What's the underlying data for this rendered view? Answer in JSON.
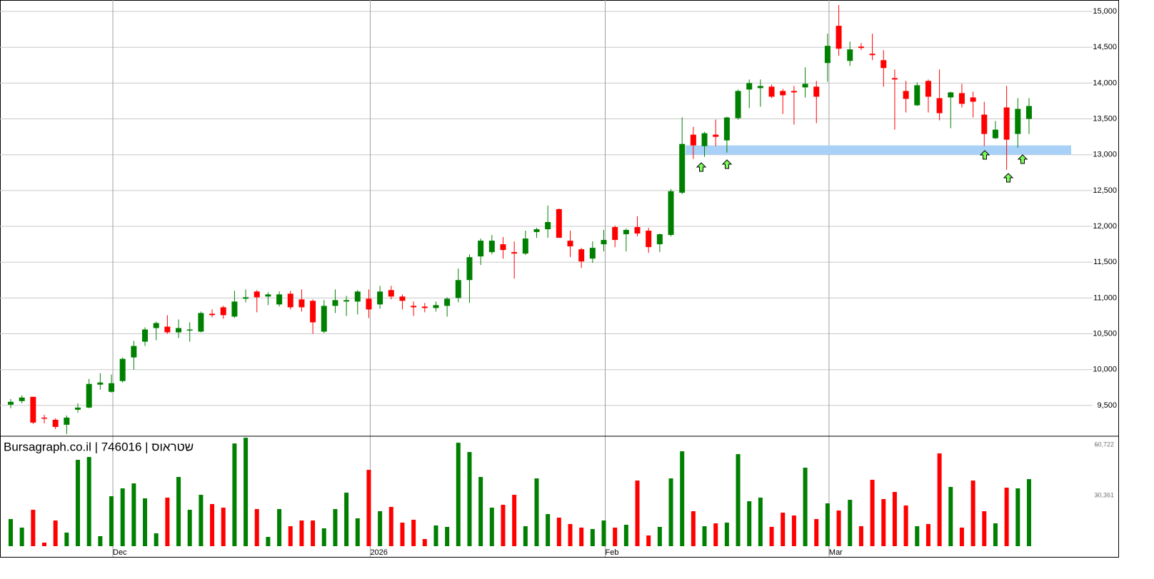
{
  "chart_data": {
    "type": "candlestick",
    "title": "Bursagraph.co.il | 746016 | שטראוס",
    "categories": [
      null,
      null,
      null,
      null,
      null,
      null,
      null,
      null,
      null,
      "Dec",
      null,
      null,
      null,
      null,
      null,
      null,
      null,
      null,
      null,
      null,
      null,
      null,
      null,
      null,
      null,
      null,
      null,
      null,
      null,
      null,
      null,
      null,
      "2026",
      null,
      null,
      null,
      null,
      null,
      null,
      null,
      null,
      null,
      null,
      null,
      null,
      null,
      null,
      null,
      null,
      null,
      null,
      null,
      null,
      "Feb",
      null,
      null,
      null,
      null,
      null,
      null,
      null,
      null,
      null,
      null,
      null,
      null,
      null,
      null,
      null,
      null,
      null,
      null,
      null,
      "Mar",
      null,
      null,
      null,
      null,
      null,
      null,
      null,
      null,
      null,
      null,
      null,
      null,
      null,
      null,
      null,
      null,
      null,
      null
    ],
    "open": [
      9510,
      9560,
      9620,
      9330,
      9300,
      9230,
      9440,
      9470,
      9790,
      9690,
      9840,
      10170,
      10390,
      10580,
      10600,
      10520,
      10550,
      10530,
      10780,
      10870,
      10740,
      10990,
      11090,
      11020,
      10910,
      11060,
      10980,
      10960,
      10530,
      10890,
      10950,
      10950,
      10990,
      10910,
      11110,
      11020,
      10890,
      10880,
      10860,
      10890,
      11000,
      11250,
      11580,
      11640,
      11750,
      11640,
      11620,
      11920,
      11960,
      12240,
      11800,
      11680,
      11550,
      11750,
      11990,
      11890,
      11990,
      11940,
      11750,
      11880,
      12470,
      13280,
      13120,
      13280,
      13200,
      13510,
      13910,
      13930,
      13950,
      13890,
      13890,
      13940,
      13950,
      14280,
      14800,
      14310,
      14510,
      14410,
      14320,
      14070,
      13890,
      13690,
      14030,
      13790,
      13800,
      13860,
      13800,
      13560,
      13230,
      13660,
      13290,
      13500
    ],
    "high": [
      9590,
      9640,
      9620,
      9370,
      9320,
      9360,
      9530,
      9870,
      9950,
      9930,
      10170,
      10400,
      10590,
      10670,
      10760,
      10700,
      10660,
      10810,
      10840,
      10890,
      11100,
      11120,
      11110,
      11080,
      11090,
      11100,
      11120,
      10980,
      10970,
      11120,
      11030,
      11110,
      11120,
      11170,
      11170,
      11050,
      10950,
      10930,
      10950,
      11010,
      11410,
      11610,
      11830,
      11880,
      11850,
      11790,
      11940,
      11980,
      12290,
      12250,
      11940,
      11700,
      11790,
      11950,
      12010,
      11970,
      12140,
      11980,
      11900,
      12520,
      13520,
      13390,
      13320,
      13490,
      13530,
      13910,
      14050,
      14050,
      13980,
      13920,
      13960,
      14220,
      14030,
      14690,
      15090,
      14580,
      14560,
      14690,
      14460,
      14190,
      14030,
      14010,
      14050,
      14190,
      13880,
      13990,
      13880,
      13740,
      13470,
      13960,
      13790,
      13790
    ],
    "low": [
      9460,
      9530,
      9240,
      9250,
      9170,
      9100,
      9400,
      9460,
      9720,
      9680,
      9820,
      10000,
      10330,
      10410,
      10500,
      10440,
      10390,
      10520,
      10730,
      10710,
      10720,
      10940,
      10800,
      10900,
      10880,
      10840,
      10810,
      10500,
      10510,
      10790,
      10750,
      10770,
      10720,
      10850,
      10980,
      10840,
      10750,
      10800,
      10810,
      10740,
      10940,
      10930,
      11460,
      11610,
      11550,
      11270,
      11600,
      11840,
      11840,
      11840,
      11570,
      11420,
      11490,
      11650,
      11710,
      11650,
      11860,
      11630,
      11640,
      11860,
      12450,
      12940,
      12970,
      13120,
      13030,
      13490,
      13650,
      13670,
      13790,
      13570,
      13420,
      13800,
      13440,
      14020,
      14380,
      14240,
      14460,
      14320,
      13950,
      13350,
      13590,
      13680,
      13590,
      13480,
      13370,
      13660,
      13520,
      13120,
      13220,
      12790,
      13100,
      13290
    ],
    "close": [
      9550,
      9610,
      9260,
      9320,
      9200,
      9330,
      9470,
      9800,
      9820,
      9810,
      10150,
      10330,
      10560,
      10650,
      10520,
      10580,
      10560,
      10790,
      10760,
      10760,
      10950,
      11010,
      11010,
      11050,
      11050,
      10870,
      10870,
      10660,
      10890,
      10970,
      10970,
      11090,
      10840,
      11090,
      11020,
      10960,
      10870,
      10860,
      10900,
      10990,
      11250,
      11570,
      11800,
      11800,
      11670,
      11620,
      11830,
      11960,
      12060,
      11840,
      11720,
      11510,
      11700,
      11810,
      11810,
      11950,
      11900,
      11710,
      11890,
      12490,
      13150,
      13130,
      13300,
      13250,
      13520,
      13890,
      14000,
      13960,
      13810,
      13830,
      13870,
      13990,
      13810,
      14520,
      14480,
      14470,
      14490,
      14390,
      14210,
      14050,
      13780,
      13970,
      13810,
      13580,
      13870,
      13710,
      13740,
      13290,
      13350,
      13210,
      13640,
      13680
    ],
    "up_color": "#008000",
    "down_color": "#ff0000",
    "ylim": [
      9080,
      15160
    ],
    "yticks": [
      {
        "value": 9500,
        "label": "9,500"
      },
      {
        "value": 10000,
        "label": "10,000"
      },
      {
        "value": 10500,
        "label": "10,500"
      },
      {
        "value": 11000,
        "label": "11,000"
      },
      {
        "value": 11500,
        "label": "11,500"
      },
      {
        "value": 12000,
        "label": "12,000"
      },
      {
        "value": 12500,
        "label": "12,500"
      },
      {
        "value": 13000,
        "label": "13,000"
      },
      {
        "value": 13500,
        "label": "13,500"
      },
      {
        "value": 14000,
        "label": "14,000"
      },
      {
        "value": 14500,
        "label": "14,500"
      },
      {
        "value": 15000,
        "label": "15,000"
      }
    ],
    "grid": true,
    "support_zone": {
      "from": 13000,
      "to": 13130,
      "color": "#a9d1f7"
    },
    "volume": {
      "values": [
        16250,
        11120,
        21810,
        2140,
        15390,
        8120,
        51740,
        53450,
        5990,
        29930,
        34640,
        37630,
        28650,
        7700,
        29080,
        41480,
        21810,
        30790,
        25230,
        23090,
        61570,
        64990,
        22240,
        5560,
        22240,
        11970,
        15390,
        15390,
        10690,
        22240,
        32070,
        16680,
        45750,
        20950,
        23520,
        14110,
        15820,
        4280,
        12400,
        11550,
        62000,
        56440,
        41480,
        23090,
        24800,
        30790,
        11970,
        40620,
        19240,
        17100,
        13260,
        11120,
        10260,
        15390,
        11120,
        12830,
        39340,
        6410,
        11550,
        40620,
        56870,
        20950,
        11970,
        13680,
        14110,
        55160,
        26940,
        29080,
        11550,
        20100,
        18390,
        47040,
        16250,
        25660,
        21380,
        27790,
        11970,
        39770,
        28220,
        32500,
        24370,
        11970,
        13260,
        55590,
        35490,
        11120,
        39340,
        20950,
        13680,
        35060,
        34640,
        40190
      ],
      "ylim": [
        0,
        65900
      ],
      "yticks": [
        {
          "value": 30361,
          "label": "30,361"
        },
        {
          "value": 60722,
          "label": "60,722"
        }
      ]
    }
  }
}
